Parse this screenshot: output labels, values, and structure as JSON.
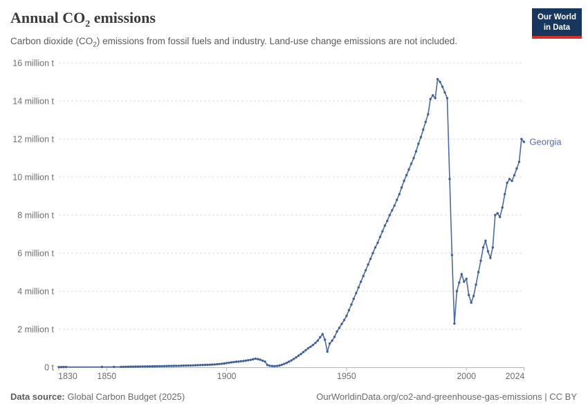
{
  "header": {
    "title_pre": "Annual CO",
    "title_sub": "2",
    "title_post": " emissions",
    "subtitle_pre": "Carbon dioxide (CO",
    "subtitle_sub": "2",
    "subtitle_post": ") emissions from fossil fuels and industry. Land-use change emissions are not included."
  },
  "logo": {
    "line1": "Our World",
    "line2": "in Data"
  },
  "footer": {
    "source_label": "Data source:",
    "source_name": " Global Carbon Budget (2025)",
    "link": "OurWorldinData.org/co2-and-greenhouse-gas-emissions | CC BY"
  },
  "colors": {
    "line": "#4c6a9c",
    "dot": "#3f5f97",
    "entity_label": "#4e6ea8",
    "grid": "#dddddd",
    "axis": "#b5b5b5",
    "tick_text": "#6e6e6e",
    "logo_bg": "#18375f",
    "logo_red": "#e02d21"
  },
  "chart_data": {
    "type": "line",
    "title": "Annual CO₂ emissions",
    "subtitle": "Carbon dioxide (CO₂) emissions from fossil fuels and industry. Land-use change emissions are not included.",
    "xlabel": "",
    "ylabel": "",
    "unit": "million t",
    "xlim": [
      1830,
      2024
    ],
    "ylim": [
      0,
      16
    ],
    "grid": "dashed-horizontal",
    "legend_position": "end-of-line-label",
    "x_ticks": [
      1830,
      1850,
      1900,
      1950,
      2000,
      2024
    ],
    "y_ticks": [
      {
        "value": 0,
        "label": "0 t"
      },
      {
        "value": 2,
        "label": "2 million t"
      },
      {
        "value": 4,
        "label": "4 million t"
      },
      {
        "value": 6,
        "label": "6 million t"
      },
      {
        "value": 8,
        "label": "8 million t"
      },
      {
        "value": 10,
        "label": "10 million t"
      },
      {
        "value": 12,
        "label": "12 million t"
      },
      {
        "value": 14,
        "label": "14 million t"
      },
      {
        "value": 16,
        "label": "16 million t"
      }
    ],
    "series": [
      {
        "name": "Georgia",
        "units": "million tonnes CO2 per year",
        "points": [
          [
            1830,
            0.012
          ],
          [
            1831,
            0.012
          ],
          [
            1832,
            0.013
          ],
          [
            1833,
            0.013
          ],
          [
            1848,
            0.018
          ],
          [
            1853,
            0.02
          ],
          [
            1856,
            0.022
          ],
          [
            1857,
            0.024
          ],
          [
            1858,
            0.027
          ],
          [
            1859,
            0.03
          ],
          [
            1860,
            0.032
          ],
          [
            1861,
            0.034
          ],
          [
            1862,
            0.036
          ],
          [
            1863,
            0.038
          ],
          [
            1864,
            0.04
          ],
          [
            1865,
            0.042
          ],
          [
            1866,
            0.044
          ],
          [
            1867,
            0.046
          ],
          [
            1868,
            0.048
          ],
          [
            1869,
            0.05
          ],
          [
            1870,
            0.052
          ],
          [
            1871,
            0.055
          ],
          [
            1872,
            0.058
          ],
          [
            1873,
            0.06
          ],
          [
            1874,
            0.063
          ],
          [
            1875,
            0.065
          ],
          [
            1876,
            0.068
          ],
          [
            1877,
            0.07
          ],
          [
            1878,
            0.073
          ],
          [
            1879,
            0.075
          ],
          [
            1880,
            0.078
          ],
          [
            1881,
            0.082
          ],
          [
            1882,
            0.086
          ],
          [
            1883,
            0.09
          ],
          [
            1884,
            0.093
          ],
          [
            1885,
            0.096
          ],
          [
            1886,
            0.1
          ],
          [
            1887,
            0.105
          ],
          [
            1888,
            0.11
          ],
          [
            1889,
            0.115
          ],
          [
            1890,
            0.12
          ],
          [
            1891,
            0.125
          ],
          [
            1892,
            0.13
          ],
          [
            1893,
            0.136
          ],
          [
            1894,
            0.142
          ],
          [
            1895,
            0.15
          ],
          [
            1896,
            0.16
          ],
          [
            1897,
            0.17
          ],
          [
            1898,
            0.185
          ],
          [
            1899,
            0.2
          ],
          [
            1900,
            0.22
          ],
          [
            1901,
            0.24
          ],
          [
            1902,
            0.26
          ],
          [
            1903,
            0.275
          ],
          [
            1904,
            0.29
          ],
          [
            1905,
            0.3
          ],
          [
            1906,
            0.315
          ],
          [
            1907,
            0.33
          ],
          [
            1908,
            0.35
          ],
          [
            1909,
            0.37
          ],
          [
            1910,
            0.39
          ],
          [
            1911,
            0.42
          ],
          [
            1912,
            0.45
          ],
          [
            1913,
            0.43
          ],
          [
            1914,
            0.4
          ],
          [
            1915,
            0.35
          ],
          [
            1916,
            0.3
          ],
          [
            1917,
            0.12
          ],
          [
            1918,
            0.08
          ],
          [
            1919,
            0.065
          ],
          [
            1920,
            0.06
          ],
          [
            1921,
            0.07
          ],
          [
            1922,
            0.09
          ],
          [
            1923,
            0.13
          ],
          [
            1924,
            0.18
          ],
          [
            1925,
            0.23
          ],
          [
            1926,
            0.29
          ],
          [
            1927,
            0.36
          ],
          [
            1928,
            0.44
          ],
          [
            1929,
            0.52
          ],
          [
            1930,
            0.61
          ],
          [
            1931,
            0.7
          ],
          [
            1932,
            0.8
          ],
          [
            1933,
            0.9
          ],
          [
            1934,
            1.0
          ],
          [
            1935,
            1.08
          ],
          [
            1936,
            1.17
          ],
          [
            1937,
            1.28
          ],
          [
            1938,
            1.4
          ],
          [
            1939,
            1.58
          ],
          [
            1940,
            1.74
          ],
          [
            1941,
            1.45
          ],
          [
            1942,
            0.82
          ],
          [
            1943,
            1.25
          ],
          [
            1944,
            1.4
          ],
          [
            1945,
            1.6
          ],
          [
            1946,
            1.88
          ],
          [
            1947,
            2.07
          ],
          [
            1948,
            2.28
          ],
          [
            1949,
            2.48
          ],
          [
            1950,
            2.7
          ],
          [
            1951,
            3.0
          ],
          [
            1952,
            3.3
          ],
          [
            1953,
            3.6
          ],
          [
            1954,
            3.9
          ],
          [
            1955,
            4.2
          ],
          [
            1956,
            4.5
          ],
          [
            1957,
            4.8
          ],
          [
            1958,
            5.1
          ],
          [
            1959,
            5.4
          ],
          [
            1960,
            5.7
          ],
          [
            1961,
            6.0
          ],
          [
            1962,
            6.3
          ],
          [
            1963,
            6.55
          ],
          [
            1964,
            6.85
          ],
          [
            1965,
            7.15
          ],
          [
            1966,
            7.45
          ],
          [
            1967,
            7.7
          ],
          [
            1968,
            8.0
          ],
          [
            1969,
            8.25
          ],
          [
            1970,
            8.5
          ],
          [
            1971,
            8.8
          ],
          [
            1972,
            9.1
          ],
          [
            1973,
            9.45
          ],
          [
            1974,
            9.8
          ],
          [
            1975,
            10.1
          ],
          [
            1976,
            10.4
          ],
          [
            1977,
            10.7
          ],
          [
            1978,
            11.0
          ],
          [
            1979,
            11.35
          ],
          [
            1980,
            11.75
          ],
          [
            1981,
            12.1
          ],
          [
            1982,
            12.5
          ],
          [
            1983,
            12.9
          ],
          [
            1984,
            13.3
          ],
          [
            1985,
            14.1
          ],
          [
            1986,
            14.3
          ],
          [
            1987,
            14.15
          ],
          [
            1988,
            15.15
          ],
          [
            1989,
            15.0
          ],
          [
            1990,
            14.75
          ],
          [
            1991,
            14.45
          ],
          [
            1992,
            14.15
          ],
          [
            1993,
            9.9
          ],
          [
            1994,
            5.9
          ],
          [
            1995,
            2.3
          ],
          [
            1996,
            4.0
          ],
          [
            1997,
            4.45
          ],
          [
            1998,
            4.9
          ],
          [
            1999,
            4.5
          ],
          [
            2000,
            4.65
          ],
          [
            2001,
            3.8
          ],
          [
            2002,
            3.4
          ],
          [
            2003,
            3.75
          ],
          [
            2004,
            4.35
          ],
          [
            2005,
            5.0
          ],
          [
            2006,
            5.6
          ],
          [
            2007,
            6.3
          ],
          [
            2008,
            6.65
          ],
          [
            2009,
            6.1
          ],
          [
            2010,
            5.75
          ],
          [
            2011,
            6.3
          ],
          [
            2012,
            8.0
          ],
          [
            2013,
            8.1
          ],
          [
            2014,
            7.9
          ],
          [
            2015,
            8.4
          ],
          [
            2016,
            9.1
          ],
          [
            2017,
            9.7
          ],
          [
            2018,
            9.9
          ],
          [
            2019,
            9.8
          ],
          [
            2020,
            10.1
          ],
          [
            2021,
            10.45
          ],
          [
            2022,
            10.8
          ],
          [
            2023,
            12.0
          ],
          [
            2024,
            11.85
          ]
        ]
      }
    ]
  }
}
